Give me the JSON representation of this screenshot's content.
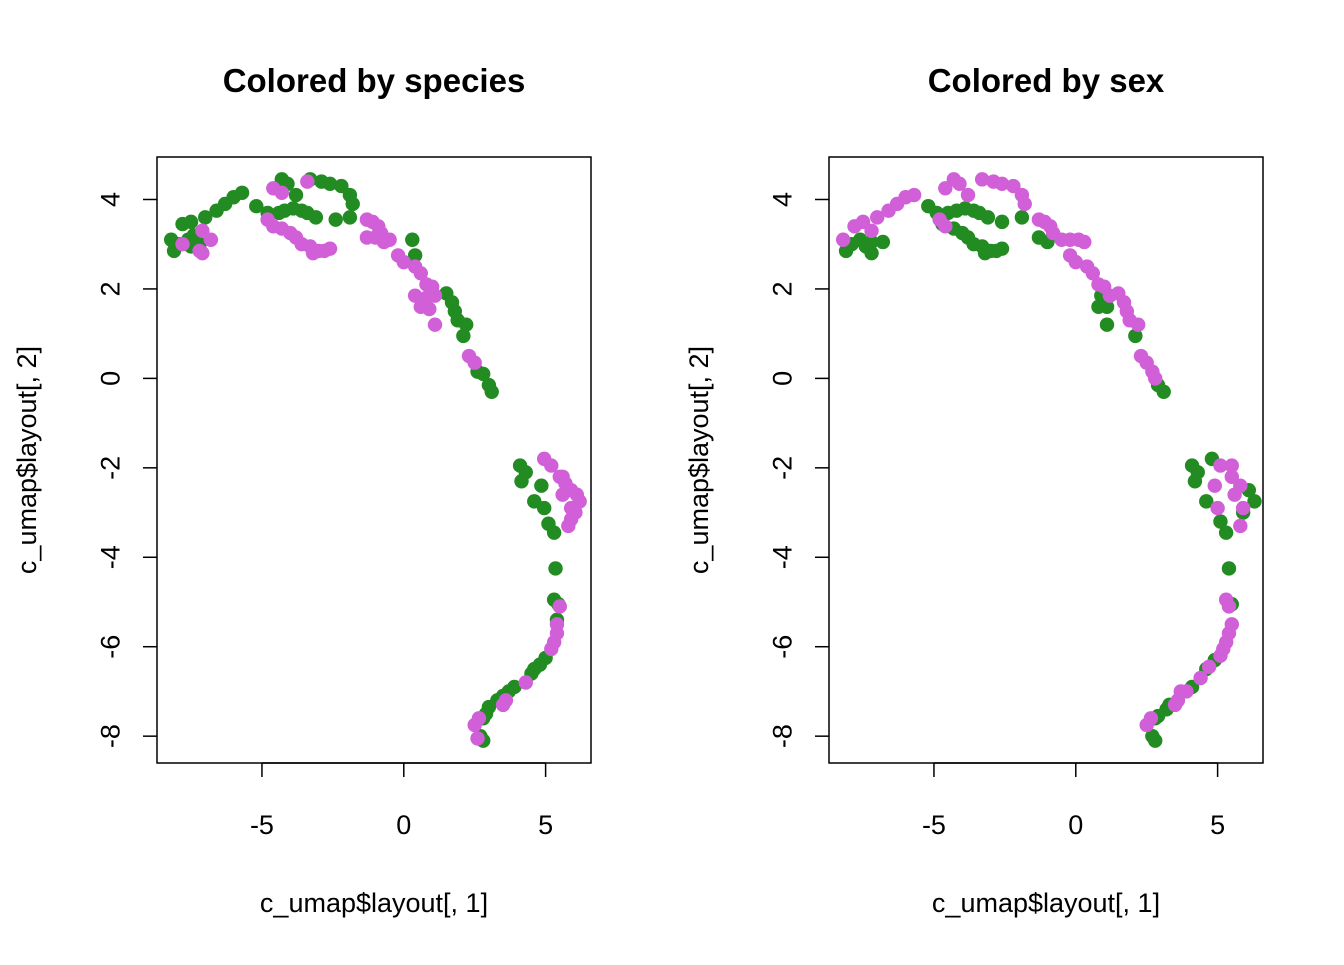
{
  "colors": {
    "green": "#228B22",
    "magenta": "#D15FD8"
  },
  "chart_data": [
    {
      "type": "scatter",
      "title": "Colored by species",
      "xlabel": "c_umap$layout[, 1]",
      "ylabel": "c_umap$layout[, 2]",
      "xlim": [
        -8.7,
        6.6
      ],
      "ylim": [
        -8.6,
        4.95
      ],
      "xticks": [
        -5,
        0,
        5
      ],
      "yticks": [
        -8,
        -6,
        -4,
        -2,
        0,
        2,
        4
      ],
      "xtick_labels": [
        "-5",
        "0",
        "5"
      ],
      "ytick_labels": [
        "-8",
        "-6",
        "-4",
        "-2",
        "0",
        "2",
        "4"
      ],
      "grid": false,
      "series": [
        {
          "color": "#228B22",
          "points": [
            [
              -8.2,
              3.1
            ],
            [
              -8.1,
              2.85
            ],
            [
              -7.9,
              3.0
            ],
            [
              -7.8,
              3.45
            ],
            [
              -7.6,
              3.1
            ],
            [
              -7.5,
              2.95
            ],
            [
              -7.4,
              3.2
            ],
            [
              -7.3,
              3.05
            ],
            [
              -7.2,
              3.0
            ],
            [
              -7.5,
              3.5
            ],
            [
              -7.0,
              3.6
            ],
            [
              -6.6,
              3.75
            ],
            [
              -6.3,
              3.9
            ],
            [
              -6.0,
              4.05
            ],
            [
              -5.7,
              4.15
            ],
            [
              -5.2,
              3.85
            ],
            [
              -4.8,
              3.7
            ],
            [
              -4.4,
              3.7
            ],
            [
              -4.2,
              3.75
            ],
            [
              -3.9,
              3.8
            ],
            [
              -3.6,
              3.75
            ],
            [
              -3.4,
              3.7
            ],
            [
              -4.3,
              4.45
            ],
            [
              -4.1,
              4.35
            ],
            [
              -3.8,
              4.1
            ],
            [
              -3.3,
              4.45
            ],
            [
              -2.9,
              4.4
            ],
            [
              -2.6,
              4.35
            ],
            [
              -2.2,
              4.3
            ],
            [
              -1.9,
              4.1
            ],
            [
              -1.8,
              3.9
            ],
            [
              -1.9,
              3.6
            ],
            [
              -2.4,
              3.55
            ],
            [
              -3.1,
              3.6
            ],
            [
              0.3,
              3.1
            ],
            [
              0.4,
              2.75
            ],
            [
              1.5,
              1.9
            ],
            [
              1.7,
              1.7
            ],
            [
              1.8,
              1.5
            ],
            [
              1.9,
              1.3
            ],
            [
              2.2,
              1.2
            ],
            [
              2.1,
              0.95
            ],
            [
              2.6,
              0.15
            ],
            [
              2.8,
              0.1
            ],
            [
              3.0,
              -0.15
            ],
            [
              3.1,
              -0.3
            ],
            [
              4.1,
              -1.95
            ],
            [
              4.3,
              -2.1
            ],
            [
              4.15,
              -2.3
            ],
            [
              4.6,
              -2.75
            ],
            [
              4.85,
              -2.4
            ],
            [
              4.95,
              -2.9
            ],
            [
              5.1,
              -3.25
            ],
            [
              5.3,
              -3.45
            ],
            [
              5.35,
              -4.25
            ],
            [
              5.3,
              -4.95
            ],
            [
              5.45,
              -5.05
            ],
            [
              5.4,
              -5.4
            ],
            [
              5.0,
              -6.25
            ],
            [
              4.8,
              -6.4
            ],
            [
              4.6,
              -6.5
            ],
            [
              4.5,
              -6.6
            ],
            [
              3.9,
              -6.9
            ],
            [
              3.7,
              -7.0
            ],
            [
              3.5,
              -7.1
            ],
            [
              3.3,
              -7.2
            ],
            [
              3.0,
              -7.35
            ],
            [
              2.9,
              -7.5
            ],
            [
              2.8,
              -7.6
            ],
            [
              2.7,
              -8.0
            ],
            [
              2.8,
              -8.1
            ]
          ]
        },
        {
          "color": "#D15FD8",
          "points": [
            [
              -7.8,
              3.0
            ],
            [
              -7.2,
              2.85
            ],
            [
              -7.1,
              2.8
            ],
            [
              -6.8,
              3.1
            ],
            [
              -7.1,
              3.3
            ],
            [
              -4.6,
              4.25
            ],
            [
              -4.3,
              4.15
            ],
            [
              -3.4,
              4.4
            ],
            [
              -4.8,
              3.55
            ],
            [
              -4.6,
              3.4
            ],
            [
              -4.3,
              3.35
            ],
            [
              -4.0,
              3.25
            ],
            [
              -3.8,
              3.15
            ],
            [
              -3.6,
              3.0
            ],
            [
              -3.3,
              2.95
            ],
            [
              -3.2,
              2.8
            ],
            [
              -3.0,
              2.85
            ],
            [
              -2.8,
              2.85
            ],
            [
              -2.6,
              2.9
            ],
            [
              -1.3,
              3.55
            ],
            [
              -1.1,
              3.5
            ],
            [
              -0.9,
              3.4
            ],
            [
              -0.8,
              3.25
            ],
            [
              -1.0,
              3.15
            ],
            [
              -0.7,
              3.05
            ],
            [
              -0.5,
              3.1
            ],
            [
              -1.3,
              3.15
            ],
            [
              -0.2,
              2.75
            ],
            [
              0.0,
              2.6
            ],
            [
              0.4,
              2.5
            ],
            [
              0.6,
              2.35
            ],
            [
              0.8,
              2.1
            ],
            [
              1.0,
              2.05
            ],
            [
              1.1,
              1.85
            ],
            [
              0.8,
              1.8
            ],
            [
              0.4,
              1.85
            ],
            [
              0.6,
              1.6
            ],
            [
              0.9,
              1.55
            ],
            [
              1.1,
              1.2
            ],
            [
              2.3,
              0.5
            ],
            [
              2.5,
              0.35
            ],
            [
              4.95,
              -1.8
            ],
            [
              5.2,
              -1.95
            ],
            [
              5.5,
              -2.2
            ],
            [
              5.7,
              -2.35
            ],
            [
              5.9,
              -2.5
            ],
            [
              6.1,
              -2.6
            ],
            [
              6.2,
              -2.75
            ],
            [
              6.05,
              -3.0
            ],
            [
              5.9,
              -3.15
            ],
            [
              5.8,
              -3.3
            ],
            [
              5.6,
              -2.6
            ],
            [
              5.9,
              -2.9
            ],
            [
              5.6,
              -2.2
            ],
            [
              5.5,
              -5.1
            ],
            [
              5.4,
              -5.7
            ],
            [
              5.3,
              -5.9
            ],
            [
              5.2,
              -6.05
            ],
            [
              5.4,
              -5.5
            ],
            [
              4.3,
              -6.8
            ],
            [
              3.6,
              -7.2
            ],
            [
              3.5,
              -7.3
            ],
            [
              2.5,
              -7.75
            ],
            [
              2.65,
              -7.6
            ],
            [
              2.6,
              -8.05
            ]
          ]
        }
      ]
    },
    {
      "type": "scatter",
      "title": "Colored by sex",
      "xlabel": "c_umap$layout[, 1]",
      "ylabel": "c_umap$layout[, 2]",
      "xlim": [
        -8.7,
        6.6
      ],
      "ylim": [
        -8.6,
        4.95
      ],
      "xticks": [
        -5,
        0,
        5
      ],
      "yticks": [
        -8,
        -6,
        -4,
        -2,
        0,
        2,
        4
      ],
      "xtick_labels": [
        "-5",
        "0",
        "5"
      ],
      "ytick_labels": [
        "-8",
        "-6",
        "-4",
        "-2",
        "0",
        "2",
        "4"
      ],
      "grid": false,
      "series": [
        {
          "color": "#228B22",
          "points": [
            [
              -8.1,
              2.85
            ],
            [
              -7.9,
              3.0
            ],
            [
              -7.6,
              3.1
            ],
            [
              -7.4,
              2.95
            ],
            [
              -7.2,
              2.8
            ],
            [
              -6.8,
              3.05
            ],
            [
              -7.2,
              3.05
            ],
            [
              -5.2,
              3.85
            ],
            [
              -4.9,
              3.7
            ],
            [
              -4.7,
              3.45
            ],
            [
              -4.5,
              3.7
            ],
            [
              -4.2,
              3.75
            ],
            [
              -3.9,
              3.8
            ],
            [
              -3.6,
              3.75
            ],
            [
              -3.4,
              3.7
            ],
            [
              -4.3,
              3.35
            ],
            [
              -4.0,
              3.25
            ],
            [
              -3.8,
              3.15
            ],
            [
              -3.6,
              3.0
            ],
            [
              -3.3,
              2.95
            ],
            [
              -3.2,
              2.8
            ],
            [
              -3.0,
              2.85
            ],
            [
              -2.8,
              2.85
            ],
            [
              -2.6,
              2.9
            ],
            [
              -3.1,
              3.6
            ],
            [
              -2.6,
              3.5
            ],
            [
              -1.9,
              3.6
            ],
            [
              -1.3,
              3.15
            ],
            [
              -1.0,
              3.05
            ],
            [
              0.9,
              1.85
            ],
            [
              1.1,
              1.6
            ],
            [
              0.8,
              1.6
            ],
            [
              1.1,
              1.2
            ],
            [
              2.1,
              0.95
            ],
            [
              2.9,
              -0.15
            ],
            [
              3.1,
              -0.3
            ],
            [
              4.1,
              -1.95
            ],
            [
              4.3,
              -2.1
            ],
            [
              4.2,
              -2.3
            ],
            [
              4.6,
              -2.75
            ],
            [
              4.8,
              -1.8
            ],
            [
              5.1,
              -3.2
            ],
            [
              5.3,
              -3.45
            ],
            [
              6.1,
              -2.5
            ],
            [
              6.3,
              -2.75
            ],
            [
              5.9,
              -3.0
            ],
            [
              5.4,
              -4.25
            ],
            [
              5.5,
              -5.05
            ],
            [
              4.9,
              -6.3
            ],
            [
              4.6,
              -6.5
            ],
            [
              4.1,
              -6.9
            ],
            [
              3.3,
              -7.3
            ],
            [
              3.2,
              -7.4
            ],
            [
              2.9,
              -7.55
            ],
            [
              2.8,
              -7.6
            ],
            [
              2.7,
              -8.0
            ],
            [
              2.8,
              -8.1
            ]
          ]
        },
        {
          "color": "#D15FD8",
          "points": [
            [
              -8.2,
              3.1
            ],
            [
              -7.8,
              3.4
            ],
            [
              -7.5,
              3.5
            ],
            [
              -7.2,
              3.3
            ],
            [
              -7.0,
              3.6
            ],
            [
              -6.6,
              3.75
            ],
            [
              -6.3,
              3.9
            ],
            [
              -6.0,
              4.05
            ],
            [
              -5.7,
              4.1
            ],
            [
              -4.6,
              4.25
            ],
            [
              -4.3,
              4.45
            ],
            [
              -4.1,
              4.35
            ],
            [
              -3.8,
              4.1
            ],
            [
              -3.3,
              4.45
            ],
            [
              -2.9,
              4.4
            ],
            [
              -2.6,
              4.35
            ],
            [
              -2.2,
              4.3
            ],
            [
              -1.9,
              4.1
            ],
            [
              -1.8,
              3.9
            ],
            [
              -4.8,
              3.55
            ],
            [
              -4.6,
              3.4
            ],
            [
              -1.3,
              3.55
            ],
            [
              -1.1,
              3.5
            ],
            [
              -0.9,
              3.4
            ],
            [
              -0.8,
              3.25
            ],
            [
              -0.5,
              3.1
            ],
            [
              -0.2,
              3.1
            ],
            [
              0.1,
              3.1
            ],
            [
              0.3,
              3.05
            ],
            [
              -0.2,
              2.75
            ],
            [
              0.0,
              2.6
            ],
            [
              0.4,
              2.5
            ],
            [
              0.6,
              2.35
            ],
            [
              0.8,
              2.1
            ],
            [
              1.0,
              2.05
            ],
            [
              1.2,
              1.85
            ],
            [
              1.5,
              1.9
            ],
            [
              1.7,
              1.7
            ],
            [
              1.8,
              1.5
            ],
            [
              1.9,
              1.3
            ],
            [
              2.2,
              1.2
            ],
            [
              2.3,
              0.5
            ],
            [
              2.5,
              0.35
            ],
            [
              2.7,
              0.15
            ],
            [
              2.8,
              0.0
            ],
            [
              4.9,
              -2.4
            ],
            [
              5.1,
              -1.95
            ],
            [
              5.0,
              -2.9
            ],
            [
              5.5,
              -2.2
            ],
            [
              5.6,
              -2.6
            ],
            [
              5.8,
              -2.4
            ],
            [
              5.9,
              -2.9
            ],
            [
              5.8,
              -3.3
            ],
            [
              5.5,
              -1.95
            ],
            [
              5.3,
              -4.95
            ],
            [
              5.4,
              -5.1
            ],
            [
              5.5,
              -5.5
            ],
            [
              5.4,
              -5.7
            ],
            [
              5.3,
              -5.9
            ],
            [
              5.2,
              -6.05
            ],
            [
              5.1,
              -6.2
            ],
            [
              4.7,
              -6.45
            ],
            [
              4.4,
              -6.7
            ],
            [
              3.9,
              -7.0
            ],
            [
              3.7,
              -7.0
            ],
            [
              3.6,
              -7.2
            ],
            [
              3.5,
              -7.3
            ],
            [
              2.5,
              -7.75
            ],
            [
              2.65,
              -7.6
            ]
          ]
        }
      ]
    }
  ]
}
